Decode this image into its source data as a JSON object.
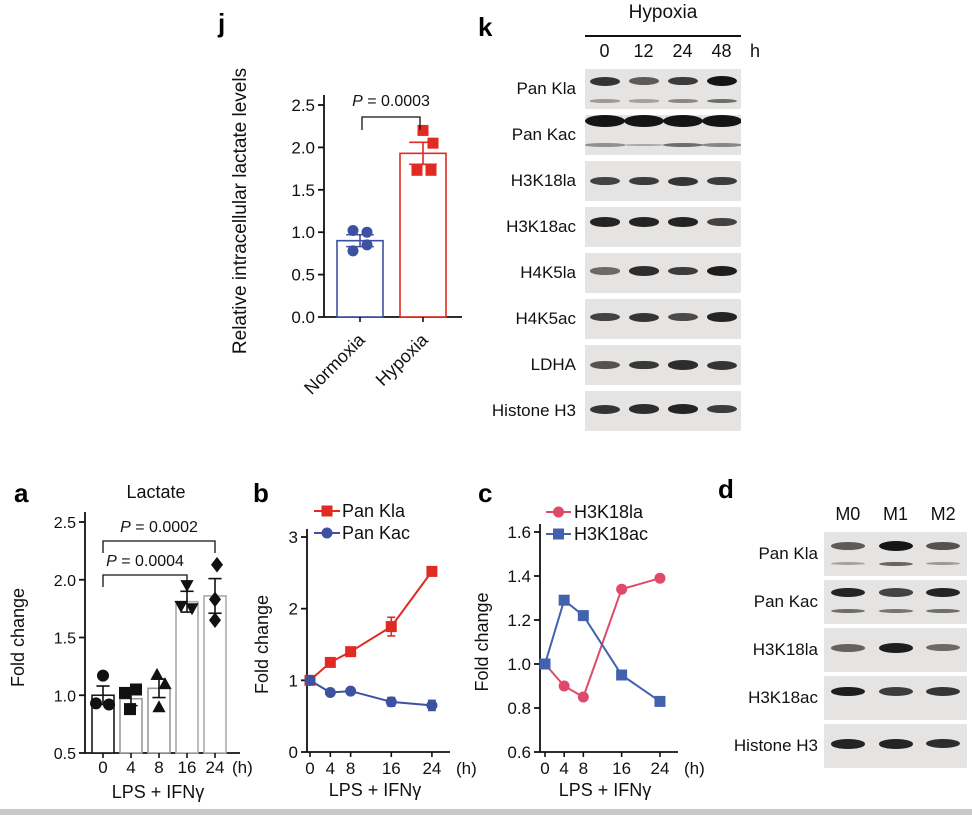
{
  "panels": {
    "j": {
      "label": "j"
    },
    "k": {
      "label": "k",
      "header": "Hypoxia",
      "lanes": [
        "0",
        "12",
        "24",
        "48"
      ],
      "lane_unit": "h",
      "rows": [
        {
          "label": "Pan Kla",
          "bands": [
            0.8,
            0.55,
            0.75,
            1.0
          ],
          "band_pos": 0.3,
          "bands2": [
            0.25,
            0.2,
            0.35,
            0.5
          ],
          "band2_pos": 0.8
        },
        {
          "label": "Pan Kac",
          "bands": [
            1,
            1,
            1,
            1
          ],
          "band_pos": 0.15,
          "band_w": 40,
          "band_h": 7,
          "bands2": [
            0.3,
            0.15,
            0.5,
            0.35
          ],
          "band2_pos": 0.75
        },
        {
          "label": "H3K18la",
          "bands": [
            0.7,
            0.75,
            0.8,
            0.75
          ],
          "band_pos": 0.5
        },
        {
          "label": "H3K18ac",
          "bands": [
            0.9,
            0.9,
            0.9,
            0.7
          ],
          "band_pos": 0.38
        },
        {
          "label": "H4K5la",
          "bands": [
            0.45,
            0.85,
            0.75,
            0.95
          ],
          "band_pos": 0.45
        },
        {
          "label": "H4K5ac",
          "bands": [
            0.7,
            0.8,
            0.65,
            0.9
          ],
          "band_pos": 0.45
        },
        {
          "label": "LDHA",
          "bands": [
            0.6,
            0.78,
            0.85,
            0.8
          ],
          "band_pos": 0.5
        },
        {
          "label": "Histone H3",
          "bands": [
            0.8,
            0.85,
            0.9,
            0.75
          ],
          "band_pos": 0.45
        }
      ]
    },
    "a": {
      "label": "a"
    },
    "b": {
      "label": "b"
    },
    "c": {
      "label": "c"
    },
    "d": {
      "label": "d",
      "lanes": [
        "M0",
        "M1",
        "M2"
      ],
      "rows": [
        {
          "label": "Pan Kla",
          "bands": [
            0.55,
            1.0,
            0.6
          ],
          "band_pos": 0.32,
          "bands2": [
            0.2,
            0.55,
            0.25
          ],
          "band2_pos": 0.72
        },
        {
          "label": "Pan Kac",
          "bands": [
            0.9,
            0.7,
            0.9
          ],
          "band_pos": 0.28,
          "bands2": [
            0.5,
            0.45,
            0.5
          ],
          "band2_pos": 0.7
        },
        {
          "label": "H3K18la",
          "bands": [
            0.5,
            0.95,
            0.45
          ],
          "band_pos": 0.45
        },
        {
          "label": "H3K18ac",
          "bands": [
            0.95,
            0.75,
            0.8
          ],
          "band_pos": 0.35
        },
        {
          "label": "Histone H3",
          "bands": [
            0.9,
            0.9,
            0.85
          ],
          "band_pos": 0.45
        }
      ]
    }
  },
  "colors": {
    "blue": "#3d50a2",
    "red": "#e02a22",
    "pink_red": "#e04a6a",
    "steel_blue": "#4262ad",
    "black": "#111111",
    "grey_bar": "#9a9a9a",
    "light_grey_bar": "#ababab"
  },
  "chart_data": [
    {
      "id": "j",
      "type": "bar",
      "title": "",
      "ylabel": "Relative intracellular lactate levels",
      "categories": [
        "Normoxia",
        "Hypoxia"
      ],
      "values": [
        0.9,
        1.93
      ],
      "errors": [
        0.07,
        0.13
      ],
      "points": [
        [
          {
            "v": 1.02,
            "dx": -7
          },
          {
            "v": 1.0,
            "dx": 7
          },
          {
            "v": 0.85,
            "dx": 7
          },
          {
            "v": 0.78,
            "dx": -7
          }
        ],
        [
          {
            "v": 2.2,
            "dx": 0
          },
          {
            "v": 2.05,
            "dx": 10
          },
          {
            "v": 1.73,
            "dx": -6
          },
          {
            "v": 1.73,
            "dx": 8
          }
        ]
      ],
      "bar_colors": [
        "#3d50a2",
        "#e02a22"
      ],
      "point_markers": [
        "circle",
        "square"
      ],
      "ylim": [
        0,
        2.5
      ],
      "yticks": [
        "0.0",
        "0.5",
        "1.0",
        "1.5",
        "2.0",
        "2.5"
      ],
      "annotations": [
        {
          "text": "P = 0.0003",
          "from": "Normoxia",
          "to": "Hypoxia"
        }
      ]
    },
    {
      "id": "a",
      "type": "bar",
      "title": "Lactate",
      "ylabel": "Fold change",
      "xlabel": "LPS + IFNγ",
      "x_unit": "(h)",
      "categories": [
        "0",
        "4",
        "8",
        "16",
        "24"
      ],
      "values": [
        1.0,
        0.97,
        1.06,
        1.81,
        1.86
      ],
      "errors": [
        0.08,
        0.06,
        0.08,
        0.09,
        0.15
      ],
      "points": [
        [
          {
            "v": 1.17,
            "dx": 0
          },
          {
            "v": 0.93,
            "dx": -7
          },
          {
            "v": 0.92,
            "dx": 6
          }
        ],
        [
          {
            "v": 1.05,
            "dx": 5
          },
          {
            "v": 1.02,
            "dx": -6
          },
          {
            "v": 0.88,
            "dx": -1
          }
        ],
        [
          {
            "v": 1.18,
            "dx": -2
          },
          {
            "v": 1.1,
            "dx": 6
          },
          {
            "v": 0.9,
            "dx": 0
          }
        ],
        [
          {
            "v": 1.95,
            "dx": 0
          },
          {
            "v": 1.77,
            "dx": -6
          },
          {
            "v": 1.75,
            "dx": 5
          }
        ],
        [
          {
            "v": 2.13,
            "dx": 2
          },
          {
            "v": 1.83,
            "dx": 0
          },
          {
            "v": 1.65,
            "dx": 0
          }
        ]
      ],
      "bar_colors": [
        "#1a1a1a",
        "#9a9a9a",
        "#9a9a9a",
        "#ababab",
        "#ababab"
      ],
      "point_markers": [
        "circle",
        "square",
        "triangle-up",
        "triangle-down",
        "diamond"
      ],
      "ylim": [
        0.5,
        2.5
      ],
      "yticks": [
        "0.5",
        "1.0",
        "1.5",
        "2.0",
        "2.5"
      ],
      "annotations": [
        {
          "text": "P = 0.0002",
          "from": "0",
          "to": "24"
        },
        {
          "text": "P = 0.0004",
          "from": "0",
          "to": "16"
        }
      ]
    },
    {
      "id": "b",
      "type": "line",
      "ylabel": "Fold change",
      "xlabel": "LPS + IFNγ",
      "x_unit": "(h)",
      "x": [
        0,
        4,
        8,
        16,
        24
      ],
      "ylim": [
        0,
        3
      ],
      "yticks": [
        "0",
        "1",
        "2",
        "3"
      ],
      "series": [
        {
          "name": "Pan Kla",
          "color": "#e02a22",
          "marker": "square",
          "values": [
            1.0,
            1.25,
            1.4,
            1.75,
            2.52
          ],
          "errors": [
            0,
            0,
            0,
            0.13,
            0.05
          ]
        },
        {
          "name": "Pan Kac",
          "color": "#3d50a2",
          "marker": "circle",
          "values": [
            1.0,
            0.83,
            0.85,
            0.7,
            0.65
          ],
          "errors": [
            0,
            0,
            0,
            0.06,
            0.07
          ]
        }
      ]
    },
    {
      "id": "c",
      "type": "line",
      "ylabel": "Fold change",
      "xlabel": "LPS + IFNγ",
      "x_unit": "(h)",
      "x": [
        0,
        4,
        8,
        16,
        24
      ],
      "ylim": [
        0.6,
        1.6
      ],
      "yticks": [
        "0.6",
        "0.8",
        "1.0",
        "1.2",
        "1.4",
        "1.6"
      ],
      "series": [
        {
          "name": "H3K18la",
          "color": "#e04a6a",
          "marker": "circle",
          "values": [
            1.0,
            0.9,
            0.85,
            1.34,
            1.39
          ],
          "errors": [
            0,
            0,
            0,
            0,
            0
          ]
        },
        {
          "name": "H3K18ac",
          "color": "#4262ad",
          "marker": "square",
          "values": [
            1.0,
            1.29,
            1.22,
            0.95,
            0.83
          ],
          "errors": [
            0,
            0,
            0,
            0,
            0
          ]
        }
      ]
    }
  ]
}
